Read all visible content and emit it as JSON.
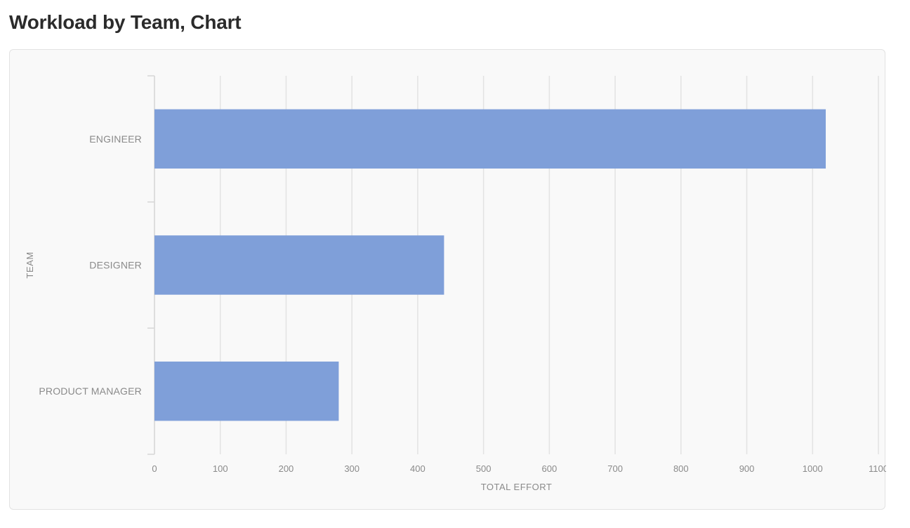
{
  "page": {
    "title": "Workload by Team, Chart"
  },
  "chart_data": {
    "type": "bar",
    "orientation": "horizontal",
    "categories": [
      "ENGINEER",
      "DESIGNER",
      "PRODUCT MANAGER"
    ],
    "values": [
      1020,
      440,
      280
    ],
    "xlabel": "TOTAL EFFORT",
    "ylabel": "TEAM",
    "xlim": [
      0,
      1100
    ],
    "xticks": [
      "0",
      "100",
      "200",
      "300",
      "400",
      "500",
      "600",
      "700",
      "800",
      "900",
      "1000",
      "1100"
    ],
    "grid": "vertical",
    "bar_color": "#7f9fd9",
    "grid_color": "#e3e3e3"
  }
}
